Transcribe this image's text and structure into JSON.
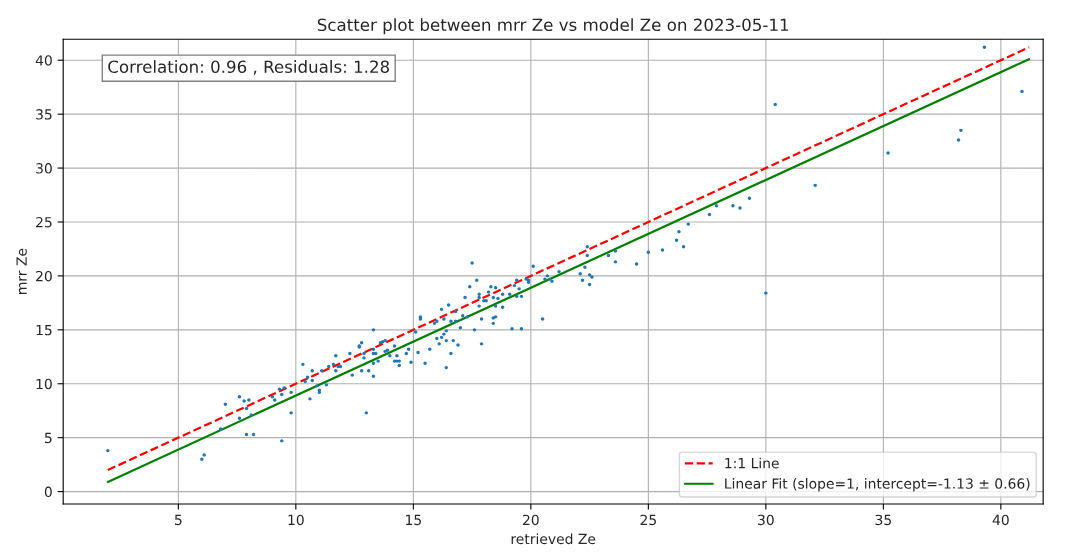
{
  "chart_data": {
    "type": "scatter",
    "title": "Scatter plot between mrr Ze vs model Ze on 2023-05-11",
    "xlabel": "retrieved Ze",
    "ylabel": "mrr Ze",
    "annotations": [
      "Correlation: 0.96 , Residuals: 1.28"
    ],
    "xlim": [
      0.1,
      41.8
    ],
    "ylim": [
      -1.15,
      41.95
    ],
    "xticks": [
      5,
      10,
      15,
      20,
      25,
      30,
      35,
      40
    ],
    "yticks": [
      0,
      5,
      10,
      15,
      20,
      25,
      30,
      35,
      40
    ],
    "grid": true,
    "legend": "bottom right",
    "series": [
      {
        "color": "#1f77b4",
        "marker": "circle",
        "x": [
          2.0,
          6.0,
          6.1,
          6.8,
          7.0,
          7.6,
          7.8,
          8.0,
          7.6,
          7.9,
          8.1,
          7.9,
          8.2,
          9.0,
          9.1,
          9.3,
          9.5,
          9.4,
          9.8,
          9.4,
          9.8,
          10.3,
          10.4,
          10.5,
          10.6,
          10.7,
          10.7,
          10.9,
          11.0,
          11.0,
          11.1,
          11.3,
          11.4,
          11.6,
          11.7,
          11.7,
          11.8,
          11.9,
          12.3,
          12.4,
          12.7,
          12.7,
          12.8,
          12.9,
          12.9,
          12.8,
          13.0,
          13.3,
          13.1,
          13.3,
          13.3,
          13.3,
          13.4,
          13.3,
          13.5,
          13.6,
          13.7,
          13.8,
          13.8,
          13.9,
          14.0,
          14.2,
          14.2,
          14.3,
          14.4,
          14.4,
          14.3,
          14.7,
          14.8,
          15.1,
          14.9,
          15.2,
          15.5,
          15.7,
          16.0,
          16.2,
          16.1,
          16.4,
          16.6,
          16.7,
          16.9,
          16.4,
          16.3,
          16.4,
          16.2,
          16.5,
          15.3,
          15.3,
          15.9,
          16.0,
          16.3,
          16.6,
          16.8,
          16.8,
          17.0,
          17.1,
          17.3,
          17.6,
          17.9,
          17.9,
          18.5,
          17.5,
          17.7,
          17.4,
          17.2,
          17.8,
          17.8,
          17.8,
          18.0,
          18.1,
          18.2,
          18.3,
          18.5,
          18.4,
          18.6,
          18.5,
          18.4,
          18.4,
          18.8,
          18.8,
          19.1,
          19.2,
          19.4,
          19.3,
          19.5,
          19.4,
          19.6,
          19.6,
          19.8,
          19.9,
          19.9,
          20.1,
          20.5,
          20.6,
          20.7,
          20.8,
          20.9,
          21.2,
          22.1,
          22.2,
          22.5,
          22.5,
          22.6,
          22.3,
          22.4,
          22.4,
          23.3,
          23.6,
          23.6,
          24.5,
          25.0,
          25.6,
          26.2,
          26.5,
          26.3,
          26.7,
          27.6,
          27.9,
          28.6,
          28.9,
          29.3,
          30.0,
          30.4,
          32.1,
          35.2,
          38.2,
          38.3,
          39.3,
          40.9
        ],
        "values": [
          3.8,
          3.0,
          3.4,
          5.8,
          8.1,
          8.8,
          8.4,
          8.5,
          6.8,
          7.7,
          7.1,
          5.3,
          5.3,
          8.8,
          8.5,
          9.5,
          9.6,
          9.0,
          7.3,
          4.7,
          9.2,
          11.8,
          10.2,
          10.6,
          8.6,
          10.3,
          11.2,
          9.8,
          9.4,
          9.2,
          11.2,
          9.9,
          11.6,
          11.8,
          12.6,
          11.2,
          11.6,
          11.6,
          12.8,
          10.8,
          13.5,
          13.4,
          13.8,
          12.4,
          12.8,
          11.2,
          7.3,
          15.0,
          11.2,
          10.7,
          11.9,
          12.8,
          12.8,
          13.2,
          12.1,
          13.8,
          13.9,
          14.0,
          13.0,
          13.1,
          12.6,
          13.5,
          12.1,
          12.1,
          12.1,
          11.7,
          12.6,
          12.8,
          13.2,
          14.8,
          12.0,
          12.9,
          11.9,
          13.2,
          14.2,
          14.3,
          13.7,
          14.0,
          12.8,
          14.0,
          13.6,
          11.5,
          14.6,
          14.9,
          16.9,
          17.3,
          16.0,
          16.2,
          15.6,
          15.8,
          16.0,
          15.8,
          15.8,
          16.7,
          15.2,
          16.3,
          16.2,
          15.0,
          13.7,
          16.0,
          16.2,
          21.2,
          19.6,
          19.0,
          18.0,
          18.3,
          18.0,
          17.2,
          17.7,
          17.7,
          18.5,
          19.0,
          18.9,
          18.0,
          17.9,
          17.2,
          16.1,
          15.6,
          18.3,
          17.1,
          18.3,
          15.1,
          19.6,
          19.1,
          18.8,
          18.1,
          18.1,
          15.1,
          19.7,
          19.6,
          19.4,
          20.9,
          16.0,
          19.7,
          20.0,
          19.7,
          19.5,
          20.4,
          20.2,
          19.6,
          19.2,
          20.1,
          19.9,
          20.8,
          21.9,
          22.7,
          21.9,
          21.3,
          22.3,
          21.1,
          22.2,
          22.4,
          23.3,
          22.7,
          24.1,
          24.8,
          25.7,
          26.5,
          26.5,
          26.3,
          27.2,
          18.4,
          35.9,
          28.4,
          31.4,
          32.6,
          33.5,
          41.2,
          37.1
        ]
      },
      {
        "type": "line",
        "name": "1:1 Line",
        "color": "#ff0000",
        "line_style": "dashed",
        "marker": "none",
        "x": [
          2.0,
          41.2
        ],
        "values": [
          2.0,
          41.2
        ]
      },
      {
        "type": "line",
        "name": "Linear Fit (slope=1, intercept=-1.13 ± 0.66)",
        "color": "#008000",
        "line_style": "solid",
        "marker": "none",
        "x": [
          2.0,
          41.2
        ],
        "values": [
          0.9,
          40.1
        ]
      }
    ]
  }
}
